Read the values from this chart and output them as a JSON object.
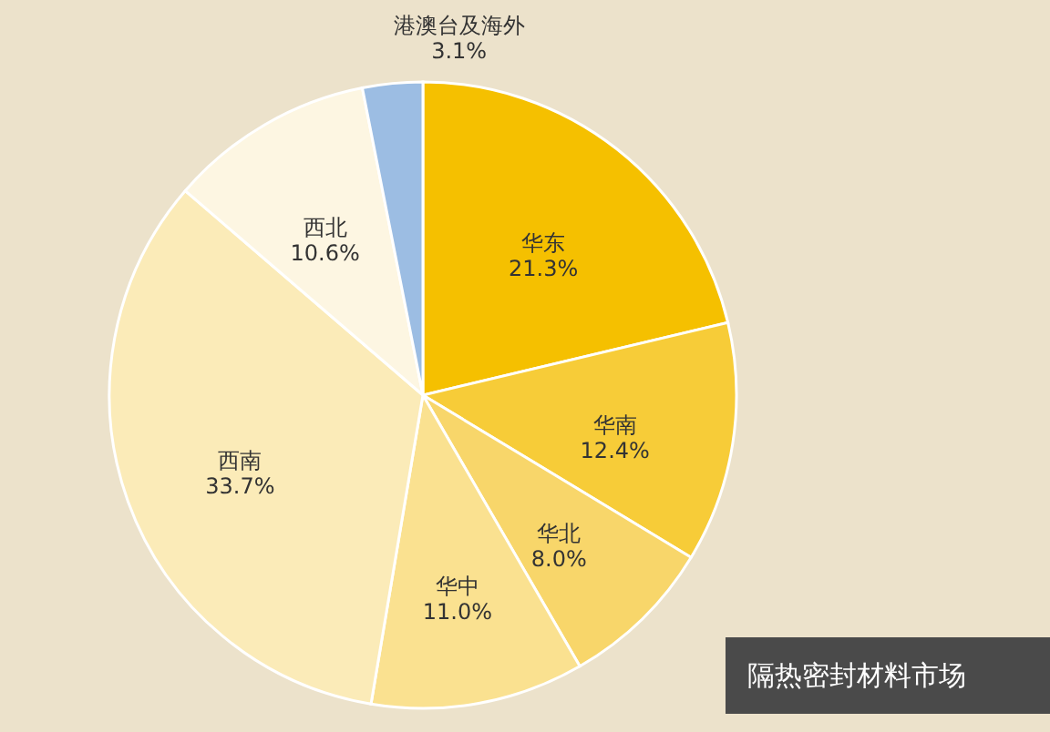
{
  "chart_data": {
    "type": "pie",
    "title": "隔热密封材料市场",
    "categories": [
      "华东",
      "华南",
      "华北",
      "华中",
      "西南",
      "西北",
      "港澳台及海外"
    ],
    "values": [
      21.3,
      12.4,
      8.0,
      11.0,
      33.7,
      10.6,
      3.1
    ],
    "colors": [
      "#f5c000",
      "#f7cc38",
      "#f8d66a",
      "#fae190",
      "#fbebb8",
      "#fdf6e2",
      "#9cbde3"
    ],
    "value_labels": [
      "21.3%",
      "12.4%",
      "8.0%",
      "11.0%",
      "33.7%",
      "10.6%",
      "3.1%"
    ]
  }
}
